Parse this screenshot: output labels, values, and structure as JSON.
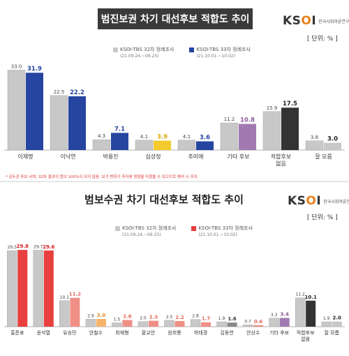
{
  "panels": [
    {
      "title": "범진보권 차기 대선후보 적합도 추이",
      "logo": "KSOI",
      "logo_sub": "한국사회여론연구소",
      "unit": "[ 단위: % ]",
      "legend": [
        {
          "label": "KSOI-TBS 32차 정례조사",
          "date": "(21.09.24.~09.25)",
          "color": "#c8c8c8"
        },
        {
          "label": "KSOI-TBS 33차 정례조사",
          "date": "(21.10.01.~10.02)",
          "color": "#2545a0"
        }
      ],
      "footnote": "* 김두관 후보 사퇴, 32차 결과의 합이 100%이 되지 않음. 보기 변화가 추이에 영향을 미쳤을 수 있으므로 해석 시 주의."
    },
    {
      "title": "범보수권 차기 대선후보 적합도 추이",
      "logo": "KSOI",
      "logo_sub": "한국사회여론연구소",
      "unit": "[ 단위: % ]",
      "legend": [
        {
          "label": "KSOI-TBS 32차 정례조사",
          "date": "(21.09.24.~09.25)",
          "color": "#c8c8c8"
        },
        {
          "label": "KSOI-TBS 33차 정례조사",
          "date": "(21.10.01.~10.02)",
          "color": "#e8403e"
        }
      ]
    }
  ],
  "chart_data": [
    {
      "type": "bar",
      "title": "범진보권 차기 대선후보 적합도 추이",
      "categories": [
        "이재명",
        "이낙연",
        "박용진",
        "심상정",
        "추미애",
        "기타 후보",
        "적합후보\n없음",
        "잘 모름"
      ],
      "series": [
        {
          "name": "KSOI-TBS 32차 정례조사",
          "values": [
            33.0,
            22.5,
            4.3,
            4.1,
            4.1,
            11.2,
            15.9,
            3.8
          ]
        },
        {
          "name": "KSOI-TBS 33차 정례조사",
          "values": [
            31.9,
            22.2,
            7.1,
            3.9,
            3.6,
            10.8,
            17.5,
            3.0
          ]
        }
      ],
      "series2_colors": [
        "#2545a0",
        "#2545a0",
        "#2545a0",
        "#f4cb2d",
        "#2545a0",
        "#a07ab0",
        "#333333",
        "#c8c8c8"
      ],
      "value_label_colors": [
        "#2545a0",
        "#2545a0",
        "#2545a0",
        "#e0a800",
        "#2545a0",
        "#8a5c9c",
        "#222222",
        "#222222"
      ],
      "ylim": [
        0,
        36
      ]
    },
    {
      "type": "bar",
      "title": "범보수권 차기 대선후보 적합도 추이",
      "categories": [
        "홍준표",
        "윤석열",
        "유승민",
        "안철수",
        "최재형",
        "황교안",
        "원희룡",
        "하태경",
        "김동연",
        "안상수",
        "기타 후보",
        "적합후보\n없음",
        "잘 모름"
      ],
      "series": [
        {
          "name": "KSOI-TBS 32차 정례조사",
          "values": [
            29.5,
            29.7,
            10.1,
            2.9,
            1.5,
            2.0,
            2.5,
            2.8,
            1.9,
            0.7,
            3.3,
            11.2,
            1.9
          ]
        },
        {
          "name": "KSOI-TBS 33차 정례조사",
          "values": [
            29.8,
            29.6,
            11.2,
            3.0,
            2.6,
            2.3,
            2.2,
            1.7,
            1.6,
            0.6,
            3.4,
            10.1,
            2.0
          ]
        }
      ],
      "series2_colors": [
        "#e8403e",
        "#e8403e",
        "#f08f86",
        "#f5b36b",
        "#f08f86",
        "#f08f86",
        "#f08f86",
        "#f08f86",
        "#888888",
        "#f08f86",
        "#a07ab0",
        "#333333",
        "#c8c8c8"
      ],
      "value_label_colors": [
        "#d42020",
        "#d42020",
        "#e06a5c",
        "#e08a20",
        "#e06a5c",
        "#e06a5c",
        "#e06a5c",
        "#e06a5c",
        "#333333",
        "#e06a5c",
        "#8a5c9c",
        "#222222",
        "#222222"
      ],
      "ylim": [
        0,
        32
      ]
    }
  ]
}
